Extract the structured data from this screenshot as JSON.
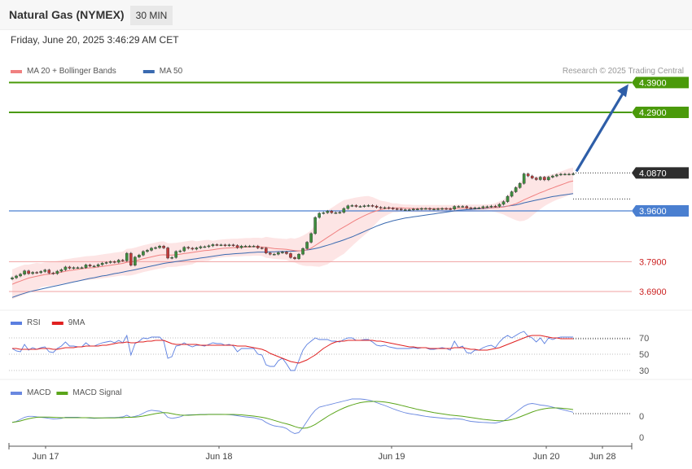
{
  "header": {
    "title": "Natural Gas (NYMEX)",
    "timeframe": "30 MIN",
    "date": "Friday, June 20, 2025 3:46:29 AM CET"
  },
  "copyright": "Research © 2025 Trading Central",
  "colors": {
    "resistance": "#4a9a0a",
    "support_line": "#4a7fd0",
    "support_red": "#cc2222",
    "ma20": "#f08080",
    "ma50": "#3a6ab0",
    "band": "#fde0e0",
    "rsi": "#5b7fe0",
    "rsi_ma": "#e02020",
    "macd": "#6a88e0",
    "macd_signal": "#5aa51a",
    "arrow": "#2e5ea8"
  },
  "chart_data": [
    {
      "type": "candlestick",
      "legend": [
        {
          "name": "MA 20 + Bollinger Bands",
          "color": "#f08080"
        },
        {
          "name": "MA 50",
          "color": "#3a6ab0"
        }
      ],
      "ylim": [
        3.63,
        4.47
      ],
      "x_ticks": [
        "Jun 17",
        "Jun 18",
        "Jun 19",
        "Jun 20",
        "Jun 28"
      ],
      "price_levels": [
        {
          "value": 4.39,
          "label": "4.3900",
          "kind": "resistance"
        },
        {
          "value": 4.29,
          "label": "4.2900",
          "kind": "resistance"
        },
        {
          "value": 4.087,
          "label": "4.0870",
          "kind": "last"
        },
        {
          "value": 3.96,
          "label": "3.9600",
          "kind": "pivot"
        },
        {
          "value": 3.79,
          "label": "3.7900",
          "kind": "support"
        },
        {
          "value": 3.69,
          "label": "3.6900",
          "kind": "support"
        }
      ],
      "target_arrow": {
        "from": 4.087,
        "to": 4.39
      },
      "close": [
        3.736,
        3.742,
        3.748,
        3.759,
        3.75,
        3.754,
        3.753,
        3.757,
        3.762,
        3.752,
        3.75,
        3.758,
        3.763,
        3.772,
        3.768,
        3.77,
        3.77,
        3.77,
        3.779,
        3.775,
        3.775,
        3.78,
        3.785,
        3.787,
        3.79,
        3.788,
        3.795,
        3.793,
        3.818,
        3.778,
        3.805,
        3.812,
        3.824,
        3.828,
        3.835,
        3.837,
        3.842,
        3.836,
        3.802,
        3.804,
        3.824,
        3.826,
        3.838,
        3.835,
        3.832,
        3.836,
        3.84,
        3.84,
        3.843,
        3.847,
        3.846,
        3.846,
        3.844,
        3.846,
        3.844,
        3.837,
        3.842,
        3.842,
        3.842,
        3.842,
        3.836,
        3.835,
        3.819,
        3.815,
        3.815,
        3.82,
        3.822,
        3.817,
        3.804,
        3.8,
        3.815,
        3.834,
        3.855,
        3.884,
        3.938,
        3.952,
        3.954,
        3.959,
        3.954,
        3.954,
        3.955,
        3.968,
        3.977,
        3.978,
        3.975,
        3.975,
        3.977,
        3.978,
        3.976,
        3.972,
        3.97,
        3.971,
        3.969,
        3.967,
        3.966,
        3.964,
        3.964,
        3.964,
        3.966,
        3.966,
        3.968,
        3.968,
        3.966,
        3.966,
        3.967,
        3.968,
        3.967,
        3.966,
        3.975,
        3.975,
        3.975,
        3.97,
        3.969,
        3.97,
        3.97,
        3.974,
        3.974,
        3.976,
        3.975,
        3.982,
        3.991,
        4.009,
        4.024,
        4.038,
        4.052,
        4.084,
        4.077,
        4.07,
        4.065,
        4.073,
        4.064,
        4.073,
        4.077,
        4.081,
        4.083,
        4.083,
        4.083,
        4.084
      ],
      "ma20": [
        3.714,
        3.72,
        3.725,
        3.73,
        3.735,
        3.738,
        3.741,
        3.744,
        3.747,
        3.748,
        3.75,
        3.752,
        3.755,
        3.758,
        3.76,
        3.762,
        3.764,
        3.766,
        3.768,
        3.769,
        3.77,
        3.772,
        3.774,
        3.776,
        3.778,
        3.78,
        3.782,
        3.784,
        3.788,
        3.789,
        3.792,
        3.796,
        3.8,
        3.803,
        3.806,
        3.809,
        3.812,
        3.813,
        3.812,
        3.812,
        3.813,
        3.815,
        3.817,
        3.819,
        3.821,
        3.823,
        3.825,
        3.827,
        3.828,
        3.83,
        3.832,
        3.834,
        3.835,
        3.836,
        3.837,
        3.837,
        3.838,
        3.839,
        3.839,
        3.84,
        3.84,
        3.839,
        3.838,
        3.836,
        3.834,
        3.833,
        3.832,
        3.831,
        3.829,
        3.827,
        3.826,
        3.827,
        3.83,
        3.835,
        3.844,
        3.853,
        3.862,
        3.871,
        3.88,
        3.889,
        3.898,
        3.906,
        3.914,
        3.922,
        3.93,
        3.937,
        3.944,
        3.95,
        3.956,
        3.96,
        3.964,
        3.967,
        3.969,
        3.97,
        3.97,
        3.97,
        3.969,
        3.969,
        3.968,
        3.968,
        3.968,
        3.968,
        3.968,
        3.968,
        3.968,
        3.968,
        3.968,
        3.968,
        3.968,
        3.969,
        3.969,
        3.969,
        3.969,
        3.969,
        3.969,
        3.969,
        3.97,
        3.97,
        3.971,
        3.972,
        3.973,
        3.976,
        3.98,
        3.984,
        3.99,
        3.997,
        4.003,
        4.009,
        4.015,
        4.021,
        4.026,
        4.032,
        4.037,
        4.042,
        4.047,
        4.052,
        4.057,
        4.06
      ],
      "ma50": [
        3.67,
        3.675,
        3.68,
        3.684,
        3.688,
        3.692,
        3.695,
        3.698,
        3.701,
        3.704,
        3.707,
        3.71,
        3.713,
        3.716,
        3.719,
        3.722,
        3.725,
        3.728,
        3.731,
        3.734,
        3.736,
        3.739,
        3.742,
        3.744,
        3.747,
        3.75,
        3.752,
        3.755,
        3.758,
        3.76,
        3.763,
        3.766,
        3.769,
        3.772,
        3.775,
        3.778,
        3.781,
        3.784,
        3.786,
        3.788,
        3.79,
        3.792,
        3.794,
        3.796,
        3.798,
        3.8,
        3.802,
        3.804,
        3.806,
        3.808,
        3.81,
        3.812,
        3.814,
        3.815,
        3.816,
        3.817,
        3.818,
        3.819,
        3.82,
        3.821,
        3.822,
        3.822,
        3.822,
        3.823,
        3.823,
        3.824,
        3.824,
        3.824,
        3.825,
        3.825,
        3.826,
        3.827,
        3.829,
        3.831,
        3.834,
        3.837,
        3.841,
        3.845,
        3.849,
        3.854,
        3.858,
        3.863,
        3.868,
        3.873,
        3.879,
        3.885,
        3.891,
        3.897,
        3.903,
        3.909,
        3.914,
        3.919,
        3.923,
        3.927,
        3.93,
        3.933,
        3.936,
        3.938,
        3.94,
        3.942,
        3.944,
        3.946,
        3.948,
        3.95,
        3.952,
        3.954,
        3.956,
        3.958,
        3.96,
        3.962,
        3.963,
        3.964,
        3.965,
        3.966,
        3.967,
        3.968,
        3.969,
        3.97,
        3.971,
        3.972,
        3.974,
        3.976,
        3.978,
        3.98,
        3.983,
        3.987,
        3.99,
        3.993,
        3.996,
        3.999,
        4.002,
        4.005,
        4.008,
        4.01,
        4.012,
        4.014,
        4.016,
        4.018
      ],
      "band_width": [
        0.05,
        0.05,
        0.05,
        0.05,
        0.045,
        0.045,
        0.045,
        0.04,
        0.04,
        0.04,
        0.04,
        0.04,
        0.04,
        0.04,
        0.04,
        0.04,
        0.04,
        0.04,
        0.04,
        0.04,
        0.04,
        0.04,
        0.04,
        0.04,
        0.04,
        0.04,
        0.04,
        0.04,
        0.045,
        0.045,
        0.045,
        0.045,
        0.045,
        0.045,
        0.045,
        0.045,
        0.045,
        0.045,
        0.04,
        0.04,
        0.04,
        0.04,
        0.04,
        0.04,
        0.04,
        0.035,
        0.035,
        0.035,
        0.035,
        0.03,
        0.03,
        0.03,
        0.03,
        0.03,
        0.03,
        0.03,
        0.03,
        0.03,
        0.03,
        0.03,
        0.03,
        0.03,
        0.035,
        0.035,
        0.035,
        0.035,
        0.035,
        0.035,
        0.04,
        0.04,
        0.045,
        0.05,
        0.055,
        0.06,
        0.07,
        0.08,
        0.085,
        0.09,
        0.09,
        0.09,
        0.09,
        0.09,
        0.085,
        0.08,
        0.075,
        0.07,
        0.065,
        0.06,
        0.05,
        0.04,
        0.03,
        0.025,
        0.02,
        0.015,
        0.015,
        0.012,
        0.012,
        0.012,
        0.012,
        0.012,
        0.012,
        0.012,
        0.012,
        0.012,
        0.012,
        0.012,
        0.012,
        0.012,
        0.012,
        0.012,
        0.012,
        0.012,
        0.012,
        0.012,
        0.012,
        0.012,
        0.012,
        0.012,
        0.015,
        0.02,
        0.025,
        0.035,
        0.045,
        0.055,
        0.065,
        0.07,
        0.07,
        0.065,
        0.06,
        0.055,
        0.05,
        0.048,
        0.046,
        0.045,
        0.045,
        0.045,
        0.045,
        0.045
      ]
    },
    {
      "type": "line",
      "legend": [
        {
          "name": "RSI",
          "color": "#5b7fe0"
        },
        {
          "name": "9MA",
          "color": "#e02020"
        }
      ],
      "ylim": [
        25,
        80
      ],
      "y_ticks": [
        70,
        50,
        30
      ],
      "series": [
        {
          "name": "RSI",
          "values": [
            57,
            54,
            53,
            62,
            55,
            58,
            56,
            58,
            59,
            53,
            52,
            57,
            60,
            65,
            60,
            60,
            59,
            59,
            64,
            60,
            60,
            62,
            64,
            65,
            66,
            64,
            67,
            64,
            73,
            49,
            63,
            66,
            70,
            69,
            71,
            71,
            71,
            66,
            45,
            47,
            60,
            61,
            64,
            61,
            59,
            61,
            61,
            60,
            62,
            64,
            63,
            63,
            61,
            62,
            60,
            53,
            57,
            57,
            57,
            57,
            50,
            49,
            37,
            35,
            35,
            42,
            45,
            38,
            30,
            30,
            42,
            55,
            62,
            66,
            70,
            68,
            68,
            68,
            66,
            66,
            65,
            68,
            70,
            70,
            67,
            67,
            68,
            68,
            65,
            61,
            60,
            61,
            59,
            58,
            57,
            57,
            57,
            57,
            58,
            57,
            58,
            58,
            56,
            56,
            57,
            58,
            57,
            55,
            66,
            58,
            60,
            52,
            51,
            55,
            55,
            58,
            60,
            61,
            58,
            65,
            70,
            73,
            70,
            73,
            76,
            78,
            72,
            70,
            65,
            70,
            63,
            70,
            68,
            70,
            71,
            71,
            71,
            71
          ]
        },
        {
          "name": "9MA",
          "values": [
            57,
            57,
            56,
            56,
            56,
            56,
            56,
            57,
            57,
            57,
            56,
            56,
            57,
            58,
            58,
            58,
            59,
            59,
            60,
            60,
            60,
            60,
            61,
            61,
            62,
            63,
            64,
            64,
            65,
            64,
            64,
            65,
            65,
            66,
            66,
            67,
            67,
            67,
            65,
            63,
            62,
            62,
            62,
            62,
            62,
            62,
            61,
            61,
            61,
            61,
            61,
            61,
            61,
            61,
            61,
            60,
            60,
            60,
            59,
            58,
            57,
            56,
            54,
            51,
            49,
            47,
            45,
            43,
            41,
            40,
            39,
            41,
            43,
            46,
            49,
            53,
            57,
            60,
            63,
            65,
            66,
            66,
            67,
            67,
            67,
            67,
            67,
            67,
            67,
            66,
            66,
            65,
            64,
            63,
            62,
            61,
            60,
            59,
            59,
            58,
            58,
            58,
            57,
            57,
            57,
            57,
            57,
            57,
            58,
            58,
            58,
            57,
            56,
            56,
            55,
            55,
            55,
            56,
            57,
            58,
            60,
            62,
            64,
            66,
            68,
            70,
            72,
            73,
            73,
            73,
            72,
            71,
            70,
            70,
            69,
            69,
            69,
            69
          ]
        }
      ]
    },
    {
      "type": "line",
      "legend": [
        {
          "name": "MACD",
          "color": "#6a88e0"
        },
        {
          "name": "MACD Signal",
          "color": "#5aa51a"
        }
      ],
      "y_ticks": [
        0,
        0
      ],
      "series": [
        {
          "name": "MACD",
          "values": [
            0.5,
            1,
            2,
            3,
            3.5,
            3.5,
            3.2,
            3,
            2.8,
            2.5,
            2.2,
            2.3,
            2.5,
            3,
            3,
            3,
            3,
            2.8,
            2.8,
            2.6,
            2.5,
            2.6,
            2.7,
            2.8,
            2.9,
            2.9,
            3,
            3.2,
            4,
            3,
            3.5,
            4,
            5,
            6,
            6.5,
            6.2,
            6,
            5.2,
            3,
            2.5,
            2.8,
            3.2,
            4,
            4.2,
            4.3,
            4.3,
            4.4,
            4.4,
            4.5,
            4.5,
            4.5,
            4.5,
            4.4,
            4.3,
            4.1,
            3.8,
            3.5,
            3.2,
            3,
            2.8,
            2.3,
            1.8,
            0.5,
            -0.5,
            -1.2,
            -1.5,
            -1.8,
            -2.5,
            -4,
            -5,
            -4.5,
            -2,
            1,
            4,
            6.5,
            8,
            8.5,
            9,
            9.5,
            10,
            10.5,
            11,
            11.5,
            12,
            12,
            12,
            11.8,
            11.5,
            11,
            10.2,
            9.5,
            8.8,
            8,
            7.2,
            6.5,
            5.8,
            5.2,
            4.8,
            4.5,
            4.2,
            3.8,
            3.5,
            3.2,
            3,
            2.8,
            2.6,
            2.4,
            2.2,
            2.4,
            2.2,
            2,
            1.4,
            1,
            0.8,
            0.6,
            0.5,
            0.4,
            0.3,
            0.2,
            0.6,
            1.2,
            2.5,
            4,
            5.5,
            7,
            8.5,
            9.5,
            9.8,
            9.5,
            9,
            8.8,
            8.5,
            8,
            7.5,
            7,
            6.5,
            6,
            5.5
          ]
        },
        {
          "name": "MACD Signal",
          "values": [
            0.5,
            0.8,
            1.2,
            1.8,
            2.3,
            2.7,
            3,
            3.1,
            3.1,
            3.1,
            3,
            2.9,
            2.8,
            2.8,
            2.8,
            2.8,
            2.8,
            2.8,
            2.8,
            2.8,
            2.7,
            2.7,
            2.7,
            2.7,
            2.7,
            2.7,
            2.8,
            2.8,
            3,
            3,
            3.1,
            3.3,
            3.6,
            4,
            4.4,
            4.8,
            5.1,
            5.3,
            5.2,
            4.8,
            4.4,
            4.1,
            4,
            4,
            4.1,
            4.2,
            4.3,
            4.3,
            4.4,
            4.4,
            4.4,
            4.4,
            4.4,
            4.4,
            4.4,
            4.3,
            4.2,
            4,
            3.8,
            3.6,
            3.3,
            3,
            2.6,
            2.1,
            1.5,
            0.9,
            0.3,
            -0.2,
            -0.8,
            -1.5,
            -2.1,
            -2.4,
            -2.2,
            -1.5,
            -0.5,
            0.8,
            2.1,
            3.4,
            4.6,
            5.7,
            6.7,
            7.6,
            8.4,
            9.1,
            9.7,
            10.2,
            10.5,
            10.7,
            10.8,
            10.8,
            10.7,
            10.5,
            10.2,
            9.8,
            9.4,
            8.9,
            8.4,
            7.9,
            7.4,
            6.9,
            6.5,
            6.1,
            5.7,
            5.3,
            5,
            4.7,
            4.4,
            4.1,
            3.9,
            3.7,
            3.5,
            3.2,
            2.9,
            2.6,
            2.3,
            2,
            1.8,
            1.6,
            1.4,
            1.3,
            1.3,
            1.5,
            1.9,
            2.5,
            3.2,
            4,
            4.8,
            5.6,
            6.3,
            6.8,
            7.2,
            7.5,
            7.6,
            7.6,
            7.5,
            7.3,
            7.1,
            6.8
          ]
        }
      ]
    }
  ]
}
